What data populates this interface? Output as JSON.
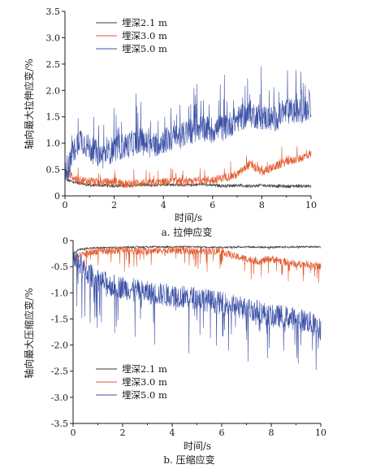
{
  "chart_data": [
    {
      "type": "line",
      "caption": "a. 拉伸应变",
      "xlabel": "时间/s",
      "ylabel": "轴向最大拉伸应变/%",
      "xlim": [
        0,
        10
      ],
      "ylim": [
        0,
        3.5
      ],
      "xticks": [
        "0",
        "2",
        "4",
        "6",
        "8",
        "10"
      ],
      "yticks": [
        "0",
        "0.5",
        "1.0",
        "1.5",
        "2.0",
        "2.5",
        "3.0",
        "3.5"
      ],
      "legend_position": "top-left",
      "series": [
        {
          "name": "埋深2.1 m",
          "color": "#3a3a3a",
          "x": [
            0,
            0.1,
            0.2,
            0.4,
            0.6,
            0.8,
            1,
            1.5,
            2,
            2.5,
            3,
            3.5,
            4,
            4.5,
            5,
            5.5,
            6,
            6.5,
            7,
            7.5,
            8,
            8.5,
            9,
            9.5,
            10
          ],
          "y": [
            0.4,
            0.3,
            0.28,
            0.25,
            0.24,
            0.22,
            0.2,
            0.2,
            0.19,
            0.2,
            0.21,
            0.2,
            0.22,
            0.21,
            0.2,
            0.22,
            0.2,
            0.19,
            0.2,
            0.18,
            0.2,
            0.19,
            0.18,
            0.19,
            0.18
          ]
        },
        {
          "name": "埋深3.0 m",
          "color": "#e2592c",
          "x": [
            0,
            0.2,
            0.5,
            1,
            1.5,
            2,
            2.5,
            3,
            3.5,
            4,
            4.5,
            5,
            5.5,
            6,
            6.5,
            7,
            7.5,
            8,
            8.5,
            9,
            9.5,
            10
          ],
          "y": [
            0.45,
            0.4,
            0.3,
            0.28,
            0.25,
            0.27,
            0.22,
            0.25,
            0.24,
            0.26,
            0.28,
            0.25,
            0.3,
            0.3,
            0.35,
            0.4,
            0.6,
            0.45,
            0.55,
            0.65,
            0.7,
            0.8
          ]
        },
        {
          "name": "埋深5.0 m",
          "color": "#3a4fa6",
          "x": [
            0,
            0.2,
            0.4,
            0.6,
            1,
            1.5,
            2,
            2.5,
            3,
            3.5,
            4,
            4.5,
            5,
            5.5,
            6,
            6.5,
            7,
            7.5,
            8,
            8.5,
            9,
            9.5,
            10
          ],
          "y": [
            0.5,
            0.6,
            0.9,
            1.1,
            0.9,
            0.75,
            0.9,
            0.95,
            1.05,
            0.95,
            1.05,
            1.1,
            1.2,
            1.3,
            1.25,
            1.3,
            1.45,
            1.55,
            1.5,
            1.45,
            1.6,
            1.6,
            1.7
          ]
        }
      ]
    },
    {
      "type": "line",
      "caption": "b. 压缩应变",
      "xlabel": "时间/s",
      "ylabel": "轴向最大压缩应变/%",
      "xlim": [
        0,
        10
      ],
      "ylim": [
        -3.5,
        0
      ],
      "xticks": [
        "0",
        "2",
        "4",
        "6",
        "8",
        "10"
      ],
      "yticks": [
        "0",
        "-0.5",
        "-1.0",
        "-1.5",
        "-2.0",
        "-2.5",
        "-3.0",
        "-3.5"
      ],
      "legend_position": "bottom-left",
      "series": [
        {
          "name": "埋深2.1 m",
          "color": "#3a3a3a",
          "x": [
            0,
            0.2,
            0.5,
            1,
            2,
            3,
            4,
            5,
            6,
            7,
            8,
            9,
            10
          ],
          "y": [
            -0.25,
            -0.18,
            -0.15,
            -0.14,
            -0.13,
            -0.12,
            -0.12,
            -0.12,
            -0.13,
            -0.12,
            -0.13,
            -0.12,
            -0.12
          ]
        },
        {
          "name": "埋深3.0 m",
          "color": "#e2592c",
          "x": [
            0,
            0.5,
            1,
            1.5,
            2,
            3,
            4,
            5,
            6,
            6.5,
            7,
            7.5,
            8,
            8.5,
            9,
            9.5,
            10
          ],
          "y": [
            -0.35,
            -0.25,
            -0.2,
            -0.2,
            -0.18,
            -0.2,
            -0.18,
            -0.2,
            -0.2,
            -0.3,
            -0.35,
            -0.4,
            -0.35,
            -0.4,
            -0.45,
            -0.45,
            -0.5
          ]
        },
        {
          "name": "埋深5.0 m",
          "color": "#3a4fa6",
          "x": [
            0,
            0.5,
            1,
            1.5,
            2,
            3,
            4,
            5,
            6,
            7,
            7.5,
            8,
            8.5,
            9,
            9.5,
            10
          ],
          "y": [
            -0.3,
            -0.6,
            -0.75,
            -0.85,
            -0.9,
            -1.0,
            -1.05,
            -1.1,
            -1.2,
            -1.3,
            -1.35,
            -1.45,
            -1.45,
            -1.5,
            -1.55,
            -1.7
          ]
        }
      ]
    }
  ]
}
